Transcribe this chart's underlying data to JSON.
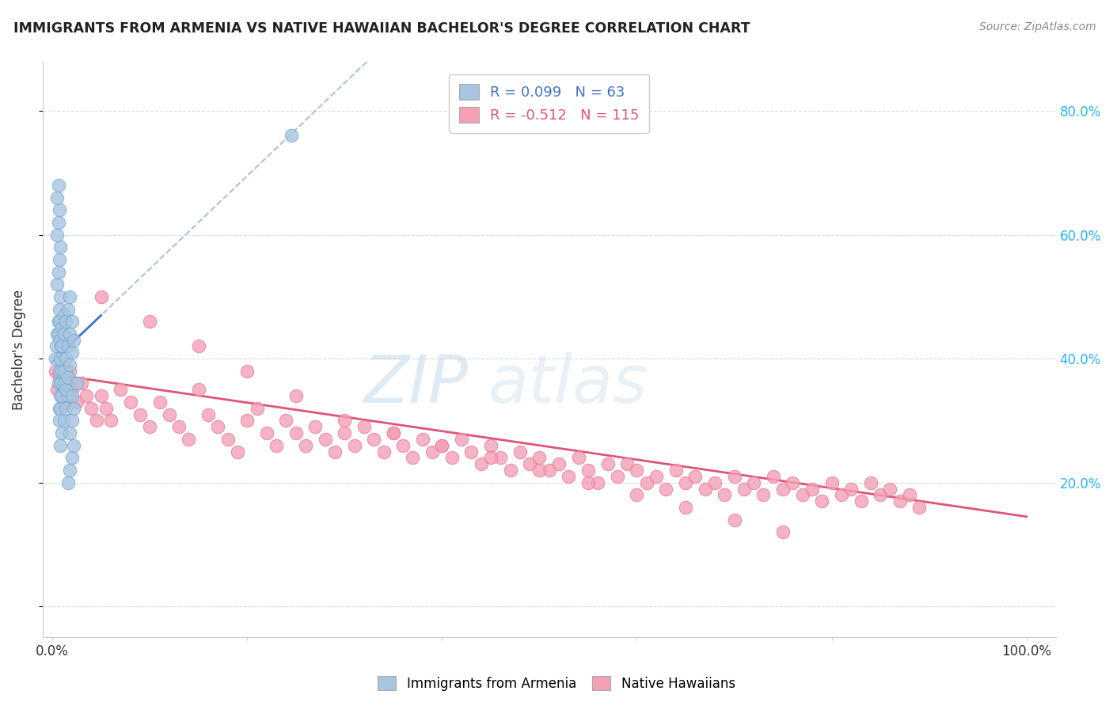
{
  "title": "IMMIGRANTS FROM ARMENIA VS NATIVE HAWAIIAN BACHELOR'S DEGREE CORRELATION CHART",
  "source": "Source: ZipAtlas.com",
  "ylabel": "Bachelor's Degree",
  "r_armenia": 0.099,
  "n_armenia": 63,
  "r_hawaii": -0.512,
  "n_hawaii": 115,
  "color_armenia": "#a8c4e0",
  "color_hawaii": "#f4a0b5",
  "edge_armenia": "#7aaed4",
  "edge_hawaii": "#e87da0",
  "line_color_armenia": "#4472c4",
  "line_color_hawaii": "#e05575",
  "dashed_line_color": "#a0bcd8",
  "background_color": "#ffffff",
  "grid_color": "#d0d8e0",
  "right_tick_color": "#29b6f6",
  "title_color": "#222222",
  "source_color": "#888888",
  "ylabel_color": "#333333",
  "ytick_vals": [
    0.0,
    0.2,
    0.4,
    0.6,
    0.8
  ],
  "ytick_labels_right": [
    "",
    "20.0%",
    "40.0%",
    "60.0%",
    "80.0%"
  ],
  "xtick_vals": [
    0.0,
    0.2,
    0.4,
    0.6,
    0.8,
    1.0
  ],
  "xtick_labels": [
    "0.0%",
    "",
    "",
    "",
    "",
    "100.0%"
  ],
  "arm_line_x0": 0.0,
  "arm_line_y0": 0.395,
  "arm_line_x1": 0.05,
  "arm_line_y1": 0.47,
  "dash_line_x0": 0.05,
  "dash_line_y0": 0.47,
  "dash_line_x1": 1.0,
  "dash_line_y1": 0.625,
  "haw_line_x0": 0.0,
  "haw_line_y0": 0.375,
  "haw_line_x1": 1.0,
  "haw_line_y1": 0.145,
  "xlim": [
    -0.01,
    1.03
  ],
  "ylim": [
    -0.05,
    0.88
  ],
  "arm_x": [
    0.003,
    0.004,
    0.005,
    0.006,
    0.005,
    0.006,
    0.007,
    0.008,
    0.005,
    0.006,
    0.007,
    0.005,
    0.006,
    0.007,
    0.008,
    0.006,
    0.007,
    0.008,
    0.009,
    0.007,
    0.008,
    0.009,
    0.01,
    0.006,
    0.007,
    0.008,
    0.01,
    0.012,
    0.007,
    0.008,
    0.01,
    0.012,
    0.014,
    0.008,
    0.01,
    0.012,
    0.014,
    0.016,
    0.01,
    0.012,
    0.014,
    0.016,
    0.018,
    0.012,
    0.014,
    0.016,
    0.018,
    0.02,
    0.014,
    0.016,
    0.018,
    0.02,
    0.022,
    0.016,
    0.018,
    0.02,
    0.022,
    0.018,
    0.02,
    0.022,
    0.02,
    0.025,
    0.245
  ],
  "arm_y": [
    0.4,
    0.42,
    0.44,
    0.46,
    0.52,
    0.54,
    0.56,
    0.58,
    0.6,
    0.62,
    0.64,
    0.66,
    0.68,
    0.48,
    0.5,
    0.36,
    0.38,
    0.4,
    0.42,
    0.32,
    0.34,
    0.36,
    0.38,
    0.44,
    0.46,
    0.43,
    0.45,
    0.47,
    0.3,
    0.32,
    0.34,
    0.36,
    0.38,
    0.26,
    0.28,
    0.3,
    0.32,
    0.34,
    0.42,
    0.44,
    0.46,
    0.48,
    0.5,
    0.38,
    0.4,
    0.42,
    0.44,
    0.46,
    0.35,
    0.37,
    0.39,
    0.41,
    0.43,
    0.2,
    0.22,
    0.24,
    0.26,
    0.28,
    0.3,
    0.32,
    0.34,
    0.36,
    0.76
  ],
  "haw_x": [
    0.003,
    0.005,
    0.007,
    0.008,
    0.01,
    0.012,
    0.015,
    0.018,
    0.02,
    0.025,
    0.03,
    0.035,
    0.04,
    0.045,
    0.05,
    0.055,
    0.06,
    0.07,
    0.08,
    0.09,
    0.1,
    0.11,
    0.12,
    0.13,
    0.14,
    0.15,
    0.16,
    0.17,
    0.18,
    0.19,
    0.2,
    0.21,
    0.22,
    0.23,
    0.24,
    0.25,
    0.26,
    0.27,
    0.28,
    0.29,
    0.3,
    0.31,
    0.32,
    0.33,
    0.34,
    0.35,
    0.36,
    0.37,
    0.38,
    0.39,
    0.4,
    0.41,
    0.42,
    0.43,
    0.44,
    0.45,
    0.46,
    0.47,
    0.48,
    0.49,
    0.5,
    0.51,
    0.52,
    0.53,
    0.54,
    0.55,
    0.56,
    0.57,
    0.58,
    0.59,
    0.6,
    0.61,
    0.62,
    0.63,
    0.64,
    0.65,
    0.66,
    0.67,
    0.68,
    0.69,
    0.7,
    0.71,
    0.72,
    0.73,
    0.74,
    0.75,
    0.76,
    0.77,
    0.78,
    0.79,
    0.8,
    0.81,
    0.82,
    0.83,
    0.84,
    0.85,
    0.86,
    0.87,
    0.88,
    0.89,
    0.05,
    0.1,
    0.15,
    0.2,
    0.25,
    0.3,
    0.35,
    0.4,
    0.45,
    0.5,
    0.55,
    0.6,
    0.65,
    0.7,
    0.75
  ],
  "haw_y": [
    0.38,
    0.35,
    0.37,
    0.36,
    0.34,
    0.33,
    0.36,
    0.38,
    0.35,
    0.33,
    0.36,
    0.34,
    0.32,
    0.3,
    0.34,
    0.32,
    0.3,
    0.35,
    0.33,
    0.31,
    0.29,
    0.33,
    0.31,
    0.29,
    0.27,
    0.35,
    0.31,
    0.29,
    0.27,
    0.25,
    0.3,
    0.32,
    0.28,
    0.26,
    0.3,
    0.28,
    0.26,
    0.29,
    0.27,
    0.25,
    0.28,
    0.26,
    0.29,
    0.27,
    0.25,
    0.28,
    0.26,
    0.24,
    0.27,
    0.25,
    0.26,
    0.24,
    0.27,
    0.25,
    0.23,
    0.26,
    0.24,
    0.22,
    0.25,
    0.23,
    0.24,
    0.22,
    0.23,
    0.21,
    0.24,
    0.22,
    0.2,
    0.23,
    0.21,
    0.23,
    0.22,
    0.2,
    0.21,
    0.19,
    0.22,
    0.2,
    0.21,
    0.19,
    0.2,
    0.18,
    0.21,
    0.19,
    0.2,
    0.18,
    0.21,
    0.19,
    0.2,
    0.18,
    0.19,
    0.17,
    0.2,
    0.18,
    0.19,
    0.17,
    0.2,
    0.18,
    0.19,
    0.17,
    0.18,
    0.16,
    0.5,
    0.46,
    0.42,
    0.38,
    0.34,
    0.3,
    0.28,
    0.26,
    0.24,
    0.22,
    0.2,
    0.18,
    0.16,
    0.14,
    0.12
  ]
}
